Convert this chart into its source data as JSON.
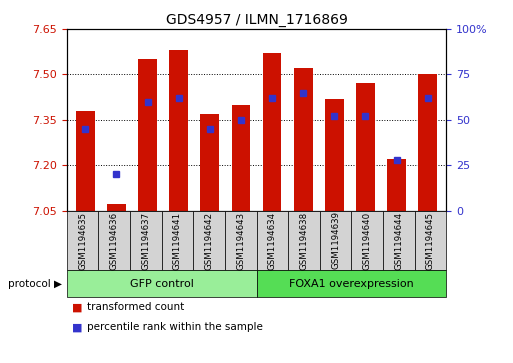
{
  "title": "GDS4957 / ILMN_1716869",
  "samples": [
    "GSM1194635",
    "GSM1194636",
    "GSM1194637",
    "GSM1194641",
    "GSM1194642",
    "GSM1194643",
    "GSM1194634",
    "GSM1194638",
    "GSM1194639",
    "GSM1194640",
    "GSM1194644",
    "GSM1194645"
  ],
  "bar_values": [
    7.38,
    7.07,
    7.55,
    7.58,
    7.37,
    7.4,
    7.57,
    7.52,
    7.42,
    7.47,
    7.22,
    7.5
  ],
  "percentile_values": [
    45,
    20,
    60,
    62,
    45,
    50,
    62,
    65,
    52,
    52,
    28,
    62
  ],
  "y_min": 7.05,
  "y_max": 7.65,
  "y_ticks": [
    7.05,
    7.2,
    7.35,
    7.5,
    7.65
  ],
  "y2_ticks": [
    0,
    25,
    50,
    75,
    100
  ],
  "bar_color": "#cc1100",
  "blue_color": "#3333cc",
  "gfp_color": "#99ee99",
  "foxa1_color": "#55dd55",
  "label_color_left": "#cc1100",
  "label_color_right": "#3333cc",
  "gfp_samples": 6,
  "foxa1_samples": 6,
  "gfp_label": "GFP control",
  "foxa1_label": "FOXA1 overexpression",
  "legend1": "transformed count",
  "legend2": "percentile rank within the sample",
  "bar_width": 0.6,
  "bar_bottom": 7.05
}
